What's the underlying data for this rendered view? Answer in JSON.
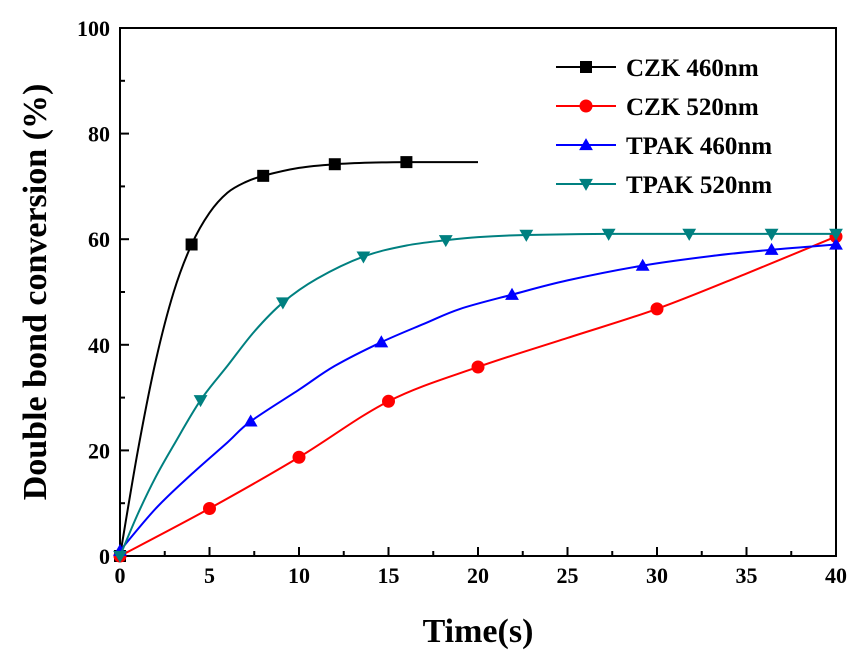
{
  "chart_data": {
    "type": "line",
    "title": "",
    "xlabel": "Time(s)",
    "ylabel": "Double bond conversion (%)",
    "xlim": [
      0,
      40
    ],
    "ylim": [
      0,
      100
    ],
    "xticks": [
      0,
      5,
      10,
      15,
      20,
      25,
      30,
      35,
      40
    ],
    "yticks": [
      0,
      20,
      40,
      60,
      80,
      100
    ],
    "grid": false,
    "legend_position": "top-right",
    "series": [
      {
        "name": "CZK 460nm",
        "color": "#000000",
        "marker": "square",
        "points": [
          [
            0,
            0
          ],
          [
            4,
            59
          ],
          [
            8,
            72
          ],
          [
            12,
            74.2
          ],
          [
            16,
            74.6
          ]
        ],
        "curve": [
          [
            0,
            0
          ],
          [
            1,
            20
          ],
          [
            2,
            37
          ],
          [
            3,
            50
          ],
          [
            4,
            59
          ],
          [
            5,
            65
          ],
          [
            6,
            68.8
          ],
          [
            7,
            70.8
          ],
          [
            8,
            72
          ],
          [
            10,
            73.5
          ],
          [
            12,
            74.2
          ],
          [
            14,
            74.5
          ],
          [
            16,
            74.6
          ],
          [
            18,
            74.6
          ],
          [
            20,
            74.6
          ]
        ]
      },
      {
        "name": "CZK 520nm",
        "color": "#ff0000",
        "marker": "circle",
        "points": [
          [
            0,
            0
          ],
          [
            5,
            9
          ],
          [
            10,
            18.7
          ],
          [
            15,
            29.3
          ],
          [
            20,
            35.8
          ],
          [
            30,
            46.8
          ],
          [
            40,
            60.5
          ]
        ],
        "curve": [
          [
            0,
            0
          ],
          [
            5,
            9
          ],
          [
            10,
            18.7
          ],
          [
            15,
            29.3
          ],
          [
            20,
            35.8
          ],
          [
            25,
            41.3
          ],
          [
            30,
            46.8
          ],
          [
            35,
            53.5
          ],
          [
            40,
            60.5
          ]
        ]
      },
      {
        "name": "TPAK 460nm",
        "color": "#0000ff",
        "marker": "triangle-up",
        "points": [
          [
            0,
            1
          ],
          [
            7.3,
            25.5
          ],
          [
            14.6,
            40.5
          ],
          [
            21.9,
            49.5
          ],
          [
            29.2,
            55
          ],
          [
            36.4,
            58
          ],
          [
            40,
            59
          ]
        ],
        "curve": [
          [
            0,
            1
          ],
          [
            2,
            9
          ],
          [
            4,
            15.5
          ],
          [
            6,
            21.5
          ],
          [
            7.3,
            25.5
          ],
          [
            10,
            31.5
          ],
          [
            12,
            36
          ],
          [
            14.6,
            40.5
          ],
          [
            17,
            44
          ],
          [
            19,
            46.8
          ],
          [
            21.9,
            49.5
          ],
          [
            25,
            52.2
          ],
          [
            29.2,
            55
          ],
          [
            33,
            56.8
          ],
          [
            36.4,
            58
          ],
          [
            40,
            59
          ]
        ]
      },
      {
        "name": "TPAK 520nm",
        "color": "#008080",
        "marker": "triangle-down",
        "points": [
          [
            0,
            0
          ],
          [
            4.5,
            29.5
          ],
          [
            9.1,
            48
          ],
          [
            13.6,
            56.7
          ],
          [
            18.2,
            59.8
          ],
          [
            22.7,
            60.8
          ],
          [
            27.3,
            61
          ],
          [
            31.8,
            61
          ],
          [
            36.4,
            61
          ],
          [
            40,
            61
          ]
        ],
        "curve": [
          [
            0,
            0
          ],
          [
            1,
            8
          ],
          [
            2,
            15
          ],
          [
            3,
            21
          ],
          [
            4.5,
            29.5
          ],
          [
            6,
            36
          ],
          [
            7.5,
            42.5
          ],
          [
            9.1,
            48
          ],
          [
            11,
            52.5
          ],
          [
            13.6,
            56.7
          ],
          [
            16,
            58.8
          ],
          [
            18.2,
            59.8
          ],
          [
            20,
            60.4
          ],
          [
            22.7,
            60.8
          ],
          [
            27.3,
            61
          ],
          [
            31.8,
            61
          ],
          [
            36.4,
            61
          ],
          [
            40,
            61
          ]
        ]
      }
    ]
  }
}
